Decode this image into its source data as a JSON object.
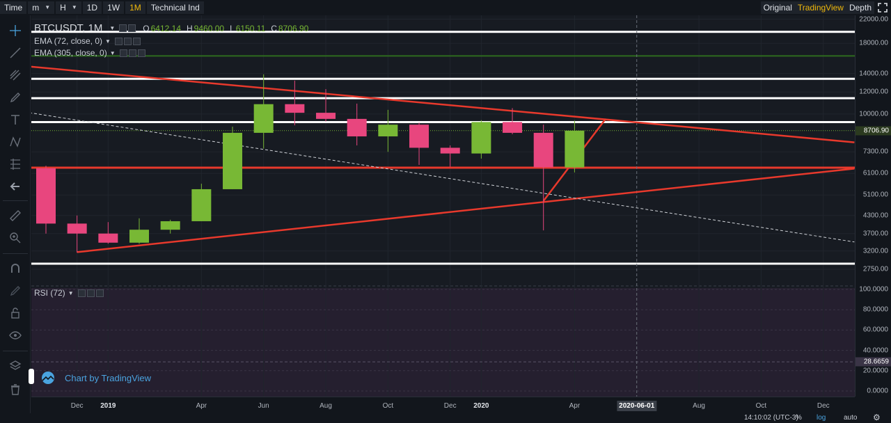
{
  "toolbar": {
    "time_label": "Time",
    "minute_label": "m",
    "hour_label": "H",
    "day_label": "1D",
    "week_label": "1W",
    "month_label": "1M",
    "indicators_label": "Technical Ind",
    "original_label": "Original",
    "tradingview_label": "TradingView",
    "depth_label": "Depth"
  },
  "legend": {
    "symbol": "BTCUSDT, 1M",
    "open_key": "O",
    "open": "6412.14",
    "high_key": "H",
    "high": "9460.00",
    "low_key": "L",
    "low": "6150.11",
    "close_key": "C",
    "close": "8706.90",
    "ema1": "EMA (72, close, 0)",
    "ema2": "EMA (305, close, 0)",
    "rsi": "RSI (72)"
  },
  "watermark": "Chart by TradingView",
  "price_axis": {
    "labels": [
      "22000.00",
      "18000.00",
      "14000.00",
      "12000.00",
      "10000.00",
      "7300.00",
      "6100.00",
      "5100.00",
      "4300.00",
      "3700.00",
      "3200.00",
      "2750.00"
    ],
    "current_price": "8706.90",
    "scale": "log"
  },
  "rsi_axis": {
    "labels": [
      "100.0000",
      "80.0000",
      "60.0000",
      "40.0000",
      "20.0000",
      "0.0000"
    ],
    "current": "28.6659"
  },
  "time_axis": {
    "labels": [
      "Dec",
      "2019",
      "Apr",
      "Jun",
      "Aug",
      "Oct",
      "Dec",
      "2020",
      "Apr",
      "Aug",
      "Oct",
      "Dec"
    ],
    "cursor_date": "2020-06-01"
  },
  "status": {
    "time": "14:10:02 (UTC-3)",
    "percent": "%",
    "log": "log",
    "auto": "auto"
  },
  "colors": {
    "up": "#78b835",
    "down": "#e8467e",
    "trendline": "#e8392c",
    "level": "#ffffff",
    "accent": "#f0b90b",
    "rsi_bg": "#251f2f"
  },
  "chart_data": {
    "type": "candlestick",
    "symbol": "BTCUSDT",
    "interval": "1M",
    "y_scale": "log",
    "ylim": [
      2500,
      23000
    ],
    "candles": [
      {
        "t": "2018-11",
        "o": 6370,
        "h": 6500,
        "l": 3700,
        "c": 4020
      },
      {
        "t": "2018-12",
        "o": 4020,
        "h": 4300,
        "l": 3160,
        "c": 3700
      },
      {
        "t": "2019-01",
        "o": 3700,
        "h": 4070,
        "l": 3400,
        "c": 3430
      },
      {
        "t": "2019-02",
        "o": 3430,
        "h": 4200,
        "l": 3400,
        "c": 3820
      },
      {
        "t": "2019-03",
        "o": 3820,
        "h": 4150,
        "l": 3700,
        "c": 4100
      },
      {
        "t": "2019-04",
        "o": 4100,
        "h": 5600,
        "l": 4100,
        "c": 5350
      },
      {
        "t": "2019-05",
        "o": 5350,
        "h": 9000,
        "l": 5350,
        "c": 8550
      },
      {
        "t": "2019-06",
        "o": 8550,
        "h": 13900,
        "l": 7500,
        "c": 10850
      },
      {
        "t": "2019-07",
        "o": 10850,
        "h": 13200,
        "l": 9100,
        "c": 10100
      },
      {
        "t": "2019-08",
        "o": 10100,
        "h": 12300,
        "l": 9400,
        "c": 9600
      },
      {
        "t": "2019-09",
        "o": 9600,
        "h": 10900,
        "l": 7700,
        "c": 8300
      },
      {
        "t": "2019-10",
        "o": 8300,
        "h": 10350,
        "l": 7300,
        "c": 9150
      },
      {
        "t": "2019-11",
        "o": 9150,
        "h": 9300,
        "l": 6550,
        "c": 7550
      },
      {
        "t": "2019-12",
        "o": 7550,
        "h": 7700,
        "l": 6450,
        "c": 7200
      },
      {
        "t": "2020-01",
        "o": 7200,
        "h": 9500,
        "l": 6900,
        "c": 9350
      },
      {
        "t": "2020-02",
        "o": 9350,
        "h": 10500,
        "l": 8450,
        "c": 8550
      },
      {
        "t": "2020-03",
        "o": 8550,
        "h": 9150,
        "l": 3800,
        "c": 6420
      },
      {
        "t": "2020-04",
        "o": 6412.14,
        "h": 9460,
        "l": 6150.11,
        "c": 8706.9
      }
    ],
    "horizontal_levels": {
      "white": [
        19800,
        13400,
        11400,
        9350,
        2880
      ],
      "green": [
        16200
      ],
      "red": [
        6400
      ]
    },
    "trendlines": [
      {
        "color": "red",
        "from": {
          "t": "2018-10",
          "p": 15000
        },
        "to": {
          "t": "2021-01",
          "p": 7900
        }
      },
      {
        "color": "red",
        "from": {
          "t": "2018-12",
          "p": 3170
        },
        "to": {
          "t": "2021-01",
          "p": 6350
        }
      },
      {
        "color": "red",
        "from": {
          "t": "2020-03",
          "p": 4850
        },
        "to": {
          "t": "2020-05",
          "p": 9600
        }
      },
      {
        "color": "white-dashed",
        "from": {
          "t": "2018-10",
          "p": 10300
        },
        "to": {
          "t": "2021-01",
          "p": 3450
        }
      }
    ],
    "rsi": {
      "period": 72,
      "current": 28.6659,
      "ylim": [
        0,
        100
      ]
    }
  }
}
